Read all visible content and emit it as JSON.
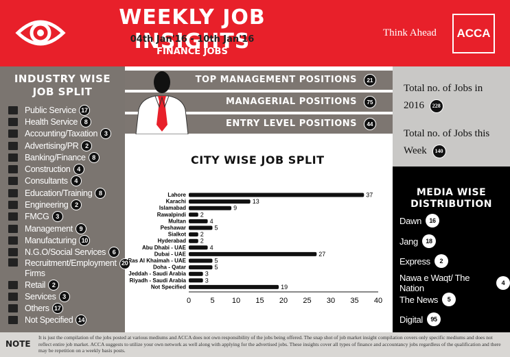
{
  "header": {
    "title": "WEEKLY JOB INSIGHTS",
    "dates": "04th Jan'16 - 10th Jan'16",
    "dept": "FINANCE JOBS",
    "tagline": "Think Ahead",
    "logo": "ACCA",
    "eye_icon": "eye-icon"
  },
  "colors": {
    "brand_red": "#e8202a",
    "panel_gray": "#7b7570",
    "light_gray": "#c9c8c6",
    "black": "#000000"
  },
  "industry": {
    "title_line1": "INDUSTRY WISE",
    "title_line2": "JOB SPLIT",
    "items": [
      {
        "label": "Public Service",
        "count": "17",
        "icon": "car-icon"
      },
      {
        "label": "Health Service",
        "count": "8",
        "icon": "ambulance-icon"
      },
      {
        "label": "Accounting/Taxation",
        "count": "3",
        "icon": "calculator-icon"
      },
      {
        "label": "Advertising/PR",
        "count": "2",
        "icon": "billboard-icon"
      },
      {
        "label": "Banking/Finance",
        "count": "8",
        "icon": "bank-icon"
      },
      {
        "label": "Construction",
        "count": "4",
        "icon": "truck-icon"
      },
      {
        "label": "Consultants",
        "count": "4",
        "icon": "person-icon"
      },
      {
        "label": "Education/Training",
        "count": "8",
        "icon": "phone-icon"
      },
      {
        "label": "Engineering",
        "count": "2",
        "icon": "gears-icon"
      },
      {
        "label": "FMCG",
        "count": "3",
        "icon": "cart-icon"
      },
      {
        "label": "Management",
        "count": "9",
        "icon": "people-icon"
      },
      {
        "label": "Manufacturing",
        "count": "10",
        "icon": "factory-icon"
      },
      {
        "label": "N.G.O/Social Services",
        "count": "6",
        "icon": "globe-icon"
      },
      {
        "label": "Recruitment/Employment Firms",
        "count": "20",
        "icon": "handshake-icon"
      },
      {
        "label": "Retail",
        "count": "2",
        "icon": "store-icon"
      },
      {
        "label": "Services",
        "count": "3",
        "icon": "group-icon"
      },
      {
        "label": "Others",
        "count": "17",
        "icon": "dollar-icon"
      },
      {
        "label": "Not Specified",
        "count": "14",
        "icon": "prohibited-icon"
      }
    ]
  },
  "positions": [
    {
      "label": "TOP MANAGEMENT POSITIONS",
      "count": "21"
    },
    {
      "label": "MANAGERIAL POSITIONS",
      "count": "75"
    },
    {
      "label": "ENTRY LEVEL POSITIONS",
      "count": "44"
    }
  ],
  "totals": {
    "year_label": "Total no. of Jobs in 2016",
    "year_line1": "Total no. of Jobs in",
    "year_line2": "2016",
    "year_count": "228",
    "week_line1": "Total no. of Jobs this",
    "week_line2": "Week",
    "week_count": "140"
  },
  "media": {
    "title_line1": "MEDIA WISE",
    "title_line2": "DISTRIBUTION",
    "items": [
      {
        "label": "Dawn",
        "count": "16"
      },
      {
        "label": "Jang",
        "count": "18"
      },
      {
        "label": "Express",
        "count": "2"
      },
      {
        "label": "Nawa e Waqt/ The Nation",
        "count": "4"
      },
      {
        "label": "The News",
        "count": "5"
      },
      {
        "label": "Digital",
        "count": "95"
      }
    ]
  },
  "chart_data": {
    "type": "bar",
    "orientation": "horizontal",
    "title": "CITY WISE JOB SPLIT",
    "categories": [
      "Lahore",
      "Karachi",
      "Islamabad",
      "Rawalpindi",
      "Multan",
      "Peshawar",
      "Sialkot",
      "Hyderabad",
      "Abu Dhabi - UAE",
      "Dubai - UAE",
      "Ras Al Khaimah - UAE",
      "Doha - Qatar",
      "Jeddah - Saudi Arabia",
      "Riyadh - Saudi Arabia",
      "Not Specified"
    ],
    "values": [
      37,
      13,
      9,
      2,
      4,
      5,
      2,
      2,
      4,
      27,
      5,
      5,
      3,
      3,
      19
    ],
    "xlim": [
      0,
      40
    ],
    "xticks": [
      "0",
      "5",
      "10",
      "15",
      "20",
      "25",
      "30",
      "35",
      "40"
    ],
    "grid": false,
    "bar_color": "#111111"
  },
  "footer": {
    "label": "NOTE",
    "text": "It is just the compilation of the jobs posted at various mediums and ACCA does not own responsibility of the jobs being offered. The snap shot of job market insight compilation covers only specific mediums and does not reflect entire job market. ACCA suggests to utilize your own network as well along with applying for the advertised jobs. These insights cover all types of finance and accountancy jobs regardless of the qualification and there may be repetition on a weekly basis posts."
  }
}
